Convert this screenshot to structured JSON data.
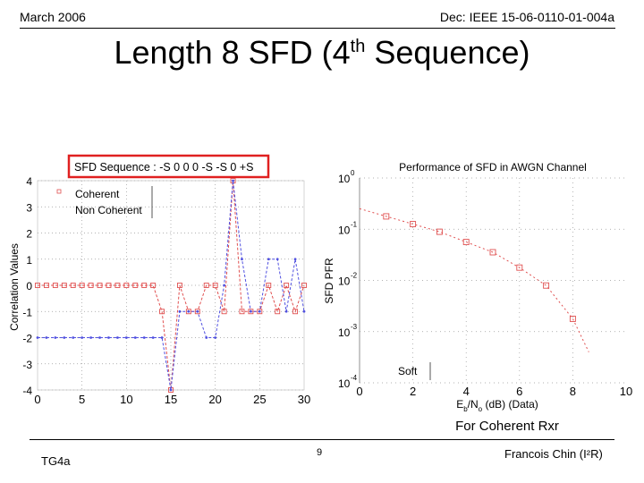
{
  "header": {
    "date": "March 2006",
    "doc": "Dec: IEEE 15-06-0110-01-004a"
  },
  "slide": {
    "title_main": "Length 8 SFD (4",
    "title_sup": "th",
    "title_end": " Sequence)",
    "caption": "For Coherent Rxr"
  },
  "footer": {
    "left": "TG4a",
    "page": "9",
    "right": "Francois Chin (I²R)"
  },
  "colors": {
    "coherent": "#e05050",
    "noncoherent": "#5050e0",
    "highlight_box": "#e02020",
    "grid": "#999999"
  },
  "chart_data": [
    {
      "type": "line",
      "title": "SFD Sequence : -S 0 0 0 -S -S 0 +S",
      "title_boxed": true,
      "xlabel": "",
      "ylabel": "Correlation Values",
      "xlim": [
        0,
        30
      ],
      "ylim": [
        -4,
        4
      ],
      "xticks": [
        "0",
        "5",
        "10",
        "15",
        "20",
        "25",
        "30"
      ],
      "yticks": [
        "4",
        "3",
        "2",
        "1",
        "0",
        "-1",
        "-2",
        "-3",
        "-4"
      ],
      "grid": true,
      "legend_position": "top-left",
      "series": [
        {
          "name": "Coherent",
          "style": "dashed-square-markers",
          "x": [
            0,
            1,
            2,
            3,
            4,
            5,
            6,
            7,
            8,
            9,
            10,
            11,
            12,
            13,
            14,
            15,
            16,
            17,
            18,
            19,
            20,
            21,
            22,
            23,
            24,
            25,
            26,
            27,
            28,
            29,
            30
          ],
          "y": [
            0,
            0,
            0,
            0,
            0,
            0,
            0,
            0,
            0,
            0,
            0,
            0,
            0,
            0,
            -1,
            -4,
            0,
            -1,
            -1,
            0,
            0,
            -1,
            4,
            -1,
            -1,
            -1,
            0,
            -1,
            0,
            -1,
            0
          ]
        },
        {
          "name": "Non Coherent",
          "style": "dashed-dot-markers",
          "x": [
            0,
            1,
            2,
            3,
            4,
            5,
            6,
            7,
            8,
            9,
            10,
            11,
            12,
            13,
            14,
            15,
            16,
            17,
            18,
            19,
            20,
            21,
            22,
            23,
            24,
            25,
            26,
            27,
            28,
            29,
            30
          ],
          "y": [
            -2,
            -2,
            -2,
            -2,
            -2,
            -2,
            -2,
            -2,
            -2,
            -2,
            -2,
            -2,
            -2,
            -2,
            -2,
            -4,
            -1,
            -1,
            -1,
            -2,
            -2,
            0,
            4,
            1,
            -1,
            -1,
            1,
            1,
            -1,
            1,
            -1
          ]
        }
      ]
    },
    {
      "type": "line",
      "title": "Performance of SFD in AWGN Channel",
      "xlabel_parts": [
        "E",
        "b",
        "/N",
        "o",
        " (dB) (Data)"
      ],
      "ylabel": "SFD PFR",
      "xlim": [
        0,
        10
      ],
      "ylim_log10": [
        -4,
        0
      ],
      "log_y": true,
      "xticks": [
        "0",
        "2",
        "4",
        "6",
        "8",
        "10"
      ],
      "ytick_exponents": [
        "0",
        "-1",
        "-2",
        "-3",
        "-4"
      ],
      "grid": true,
      "legend_position": "bottom-left",
      "series": [
        {
          "name": "Soft",
          "style": "dashed-square-markers",
          "x": [
            0,
            1,
            2,
            3,
            4,
            5,
            6,
            7,
            8,
            8.6
          ],
          "y_log10": [
            -0.6,
            -0.75,
            -0.9,
            -1.05,
            -1.25,
            -1.45,
            -1.75,
            -2.1,
            -2.75,
            -3.4
          ]
        }
      ]
    }
  ]
}
